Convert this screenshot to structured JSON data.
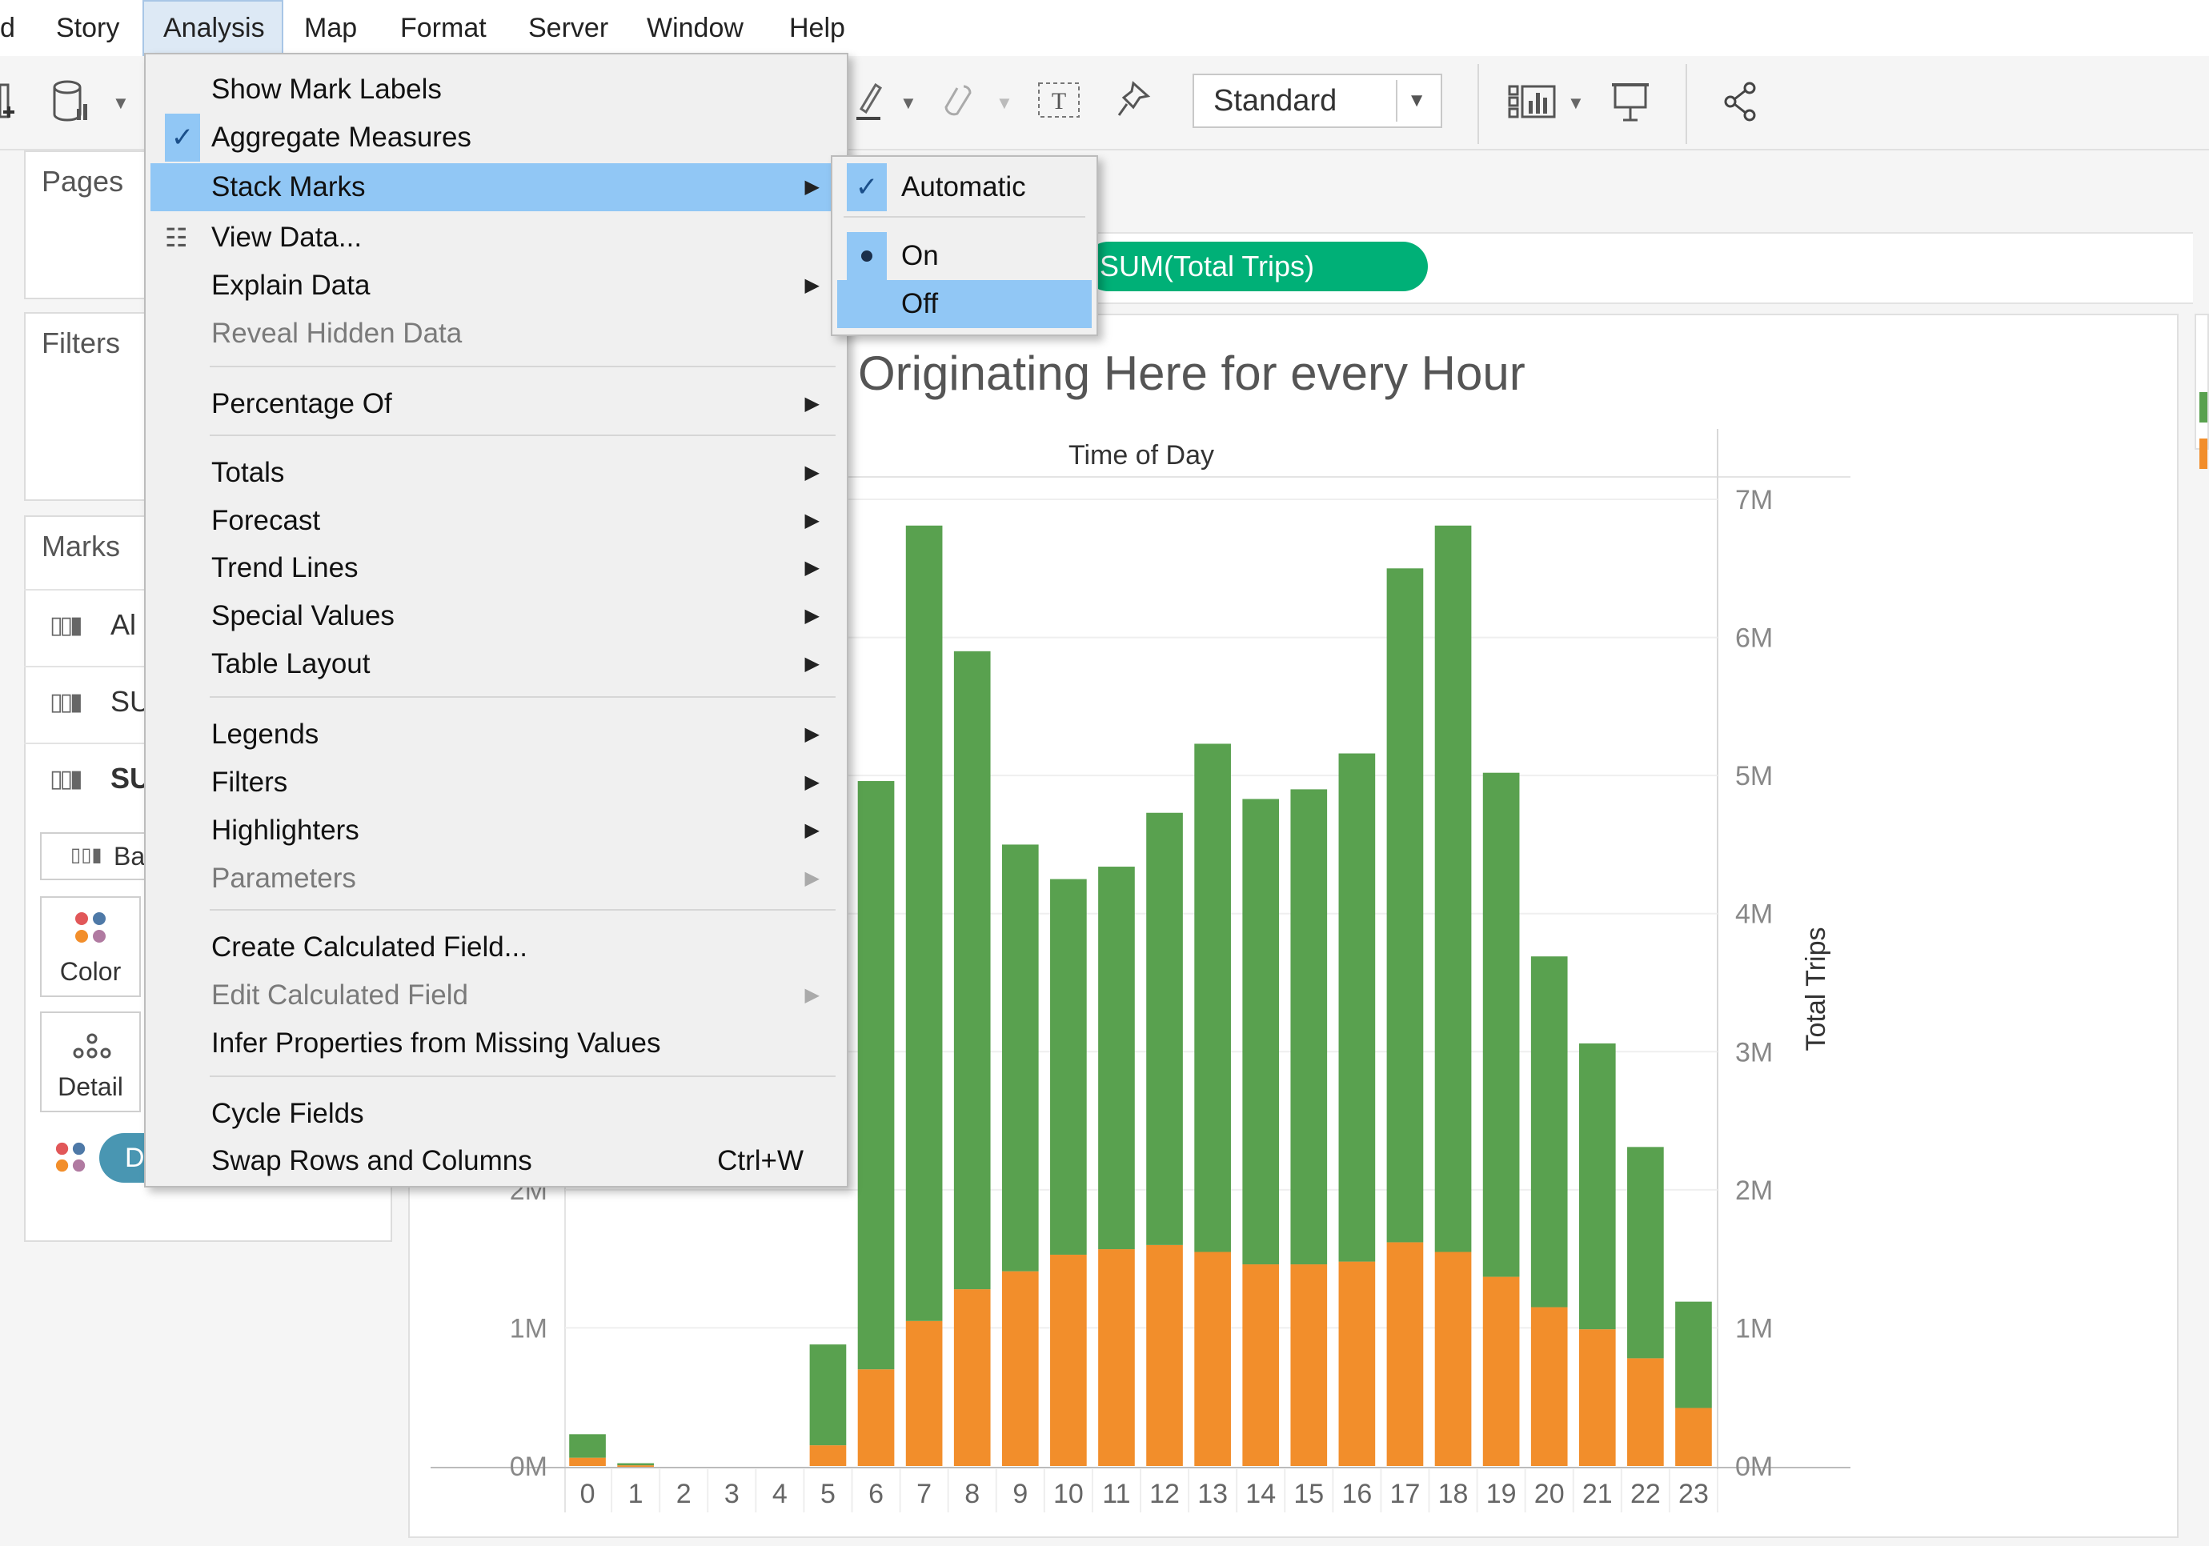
{
  "menubar": {
    "items": [
      "d",
      "Story",
      "Analysis",
      "Map",
      "Format",
      "Server",
      "Window",
      "Help"
    ]
  },
  "toolbar": {
    "fit_select": "Standard",
    "icons": [
      "new-data-source-icon",
      "data-source-icon",
      "highlight-pen-icon",
      "annotate-icon",
      "text-label-icon",
      "pin-icon",
      "show-me-icon",
      "presentation-icon",
      "share-icon"
    ]
  },
  "left_pane": {
    "pages_title": "Pages",
    "filters_title": "Filters",
    "marks_title": "Marks",
    "marks_rows": [
      "Al",
      "SU",
      "SU"
    ],
    "mark_type": "Ba",
    "color_label": "Color",
    "detail_label": "Detail",
    "color_pill_text": "D"
  },
  "shelf": {
    "pill_text": "SUM(Total Trips)"
  },
  "analysis_menu": {
    "items": [
      {
        "label": "Show Mark Labels"
      },
      {
        "label": "Aggregate Measures",
        "checked": true
      },
      {
        "label": "Stack Marks",
        "submenu": true,
        "highlighted": true
      },
      {
        "label": "View Data..."
      },
      {
        "label": "Explain Data",
        "submenu": true
      },
      {
        "label": "Reveal Hidden Data",
        "disabled": true
      },
      {
        "label": "Percentage Of",
        "submenu": true
      },
      {
        "label": "Totals",
        "submenu": true
      },
      {
        "label": "Forecast",
        "submenu": true
      },
      {
        "label": "Trend Lines",
        "submenu": true
      },
      {
        "label": "Special Values",
        "submenu": true
      },
      {
        "label": "Table Layout",
        "submenu": true
      },
      {
        "label": "Legends",
        "submenu": true
      },
      {
        "label": "Filters",
        "submenu": true
      },
      {
        "label": "Highlighters",
        "submenu": true
      },
      {
        "label": "Parameters",
        "submenu": true,
        "disabled": true
      },
      {
        "label": "Create Calculated Field..."
      },
      {
        "label": "Edit Calculated Field",
        "submenu": true,
        "disabled": true
      },
      {
        "label": "Infer Properties from Missing Values"
      },
      {
        "label": "Cycle Fields"
      },
      {
        "label": "Swap Rows and Columns",
        "shortcut": "Ctrl+W"
      }
    ]
  },
  "stack_marks_submenu": {
    "items": [
      {
        "label": "Automatic",
        "checked": true
      },
      {
        "label": "On",
        "selected": true
      },
      {
        "label": "Off",
        "highlighted": true
      }
    ]
  },
  "colors": {
    "menu_highlight": "#91c7f5",
    "green_bar": "#59a14f",
    "orange_bar": "#f28e2b",
    "pill": "#00b077"
  },
  "chart_data": {
    "type": "bar",
    "title": "Originating Here for every Hour",
    "xlabel": "Time of Day",
    "ylabel": "Total Trips",
    "ylim": [
      0,
      7000000
    ],
    "y_ticks": [
      "0M",
      "1M",
      "2M",
      "3M",
      "4M",
      "5M",
      "6M",
      "7M"
    ],
    "left_y_ticks_visible": [
      "0M",
      "1M",
      "2M"
    ],
    "categories": [
      "0",
      "1",
      "2",
      "3",
      "4",
      "5",
      "6",
      "7",
      "8",
      "9",
      "10",
      "11",
      "12",
      "13",
      "14",
      "15",
      "16",
      "17",
      "18",
      "19",
      "20",
      "21",
      "22",
      "23"
    ],
    "stacked": true,
    "series": [
      {
        "values": [
          60000,
          5000,
          0,
          0,
          0,
          150000,
          700000,
          1050000,
          1280000,
          1410000,
          1530000,
          1570000,
          1600000,
          1550000,
          1460000,
          1460000,
          1480000,
          1620000,
          1550000,
          1370000,
          1150000,
          990000,
          780000,
          420000
        ]
      },
      {
        "values": [
          170000,
          15000,
          0,
          0,
          0,
          730000,
          4260000,
          5760000,
          4620000,
          3090000,
          2720000,
          2770000,
          3130000,
          3680000,
          3370000,
          3440000,
          3680000,
          4880000,
          5260000,
          3650000,
          2540000,
          2070000,
          1530000,
          770000
        ]
      }
    ]
  }
}
